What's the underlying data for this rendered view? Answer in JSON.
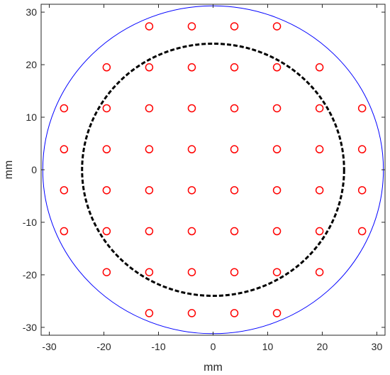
{
  "chart_data": {
    "type": "scatter",
    "title": "",
    "xlabel": "mm",
    "ylabel": "mm",
    "xlim": [
      -31.5,
      31.5
    ],
    "ylim": [
      -31.5,
      31.5
    ],
    "xticks": [
      -30,
      -20,
      -10,
      0,
      10,
      20,
      30
    ],
    "xtick_labels": [
      "-30",
      "-20",
      "-10",
      "0",
      "10",
      "20",
      "30"
    ],
    "yticks": [
      -30,
      -20,
      -10,
      0,
      10,
      20,
      30
    ],
    "ytick_labels": [
      "-30",
      "-20",
      "-10",
      "0",
      "10",
      "20",
      "30"
    ],
    "grid": false,
    "circles": [
      {
        "center": [
          0,
          0
        ],
        "radius": 31.2,
        "color": "#0000ff",
        "style": "solid"
      },
      {
        "center": [
          0,
          0
        ],
        "radius": 24.0,
        "color": "#000000",
        "style": "dashed"
      }
    ],
    "points": {
      "marker": "circle-open",
      "color": "#ff0000",
      "x": [
        -11.7,
        -3.9,
        3.9,
        11.7,
        -19.5,
        -11.7,
        -3.9,
        3.9,
        11.7,
        19.5,
        -27.3,
        -19.5,
        -11.7,
        -3.9,
        3.9,
        11.7,
        19.5,
        27.3,
        -27.3,
        -19.5,
        -11.7,
        -3.9,
        3.9,
        11.7,
        19.5,
        27.3,
        -27.3,
        -19.5,
        -11.7,
        -3.9,
        3.9,
        11.7,
        19.5,
        27.3,
        -27.3,
        -19.5,
        -11.7,
        -3.9,
        3.9,
        11.7,
        19.5,
        27.3,
        -19.5,
        -11.7,
        -3.9,
        3.9,
        11.7,
        19.5,
        -11.7,
        -3.9,
        3.9,
        11.7
      ],
      "y": [
        27.3,
        27.3,
        27.3,
        27.3,
        19.5,
        19.5,
        19.5,
        19.5,
        19.5,
        19.5,
        11.7,
        11.7,
        11.7,
        11.7,
        11.7,
        11.7,
        11.7,
        11.7,
        3.9,
        3.9,
        3.9,
        3.9,
        3.9,
        3.9,
        3.9,
        3.9,
        -3.9,
        -3.9,
        -3.9,
        -3.9,
        -3.9,
        -3.9,
        -3.9,
        -3.9,
        -11.7,
        -11.7,
        -11.7,
        -11.7,
        -11.7,
        -11.7,
        -11.7,
        -11.7,
        -19.5,
        -19.5,
        -19.5,
        -19.5,
        -19.5,
        -19.5,
        -27.3,
        -27.3,
        -27.3,
        -27.3
      ]
    }
  }
}
